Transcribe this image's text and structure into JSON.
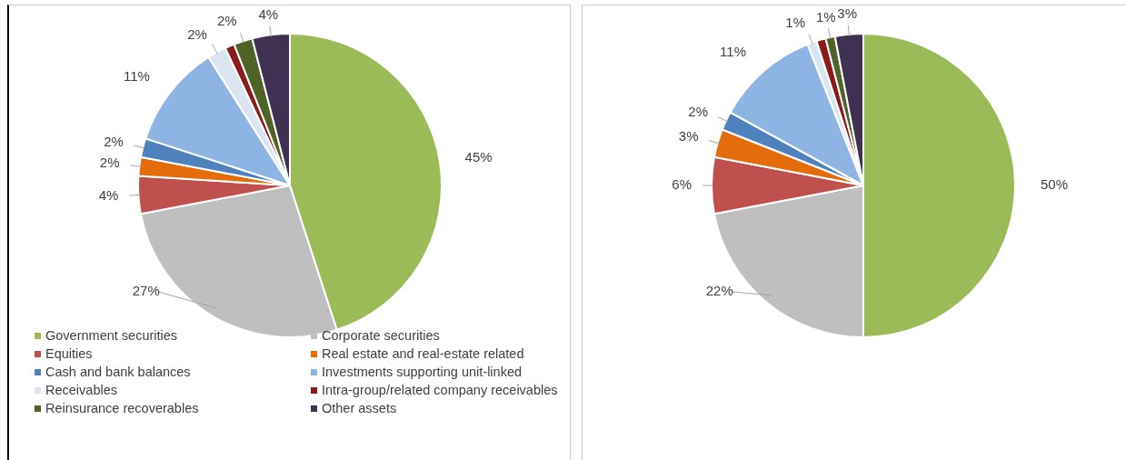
{
  "chart_data": [
    {
      "type": "pie",
      "categories": [
        "Government securities",
        "Corporate securities",
        "Equities",
        "Real estate and real-estate related",
        "Cash and bank balances",
        "Investments supporting unit-linked",
        "Receivables",
        "Intra-group/related company receivables",
        "Reinsurance recoverables",
        "Other assets"
      ],
      "values": [
        45,
        27,
        4,
        2,
        2,
        11,
        2,
        1,
        2,
        4
      ],
      "value_labels": [
        "45%",
        "27%",
        "4%",
        "2%",
        "2%",
        "11%",
        "2%",
        null,
        "2%",
        "4%"
      ],
      "colors": [
        "#9bbb59",
        "#bfbfbf",
        "#c0504d",
        "#e46c0a",
        "#4f81bd",
        "#8eb4e3",
        "#dbe5f1",
        "#8b1a1a",
        "#4f6228",
        "#403152"
      ],
      "legend": "bottom"
    },
    {
      "type": "pie",
      "categories": [
        null,
        null,
        null,
        null,
        null,
        null,
        null,
        null,
        null,
        null
      ],
      "values": [
        50,
        22,
        6,
        3,
        2,
        11,
        1,
        1,
        1,
        3
      ],
      "value_labels": [
        "50%",
        "22%",
        "6%",
        "3%",
        "2%",
        "11%",
        "1%",
        null,
        "1%",
        "3%"
      ],
      "colors": [
        "#9bbb59",
        "#bfbfbf",
        "#c0504d",
        "#e46c0a",
        "#4f81bd",
        "#8eb4e3",
        "#dbe5f1",
        "#8b1a1a",
        "#4f6228",
        "#403152"
      ],
      "legend": false
    }
  ]
}
